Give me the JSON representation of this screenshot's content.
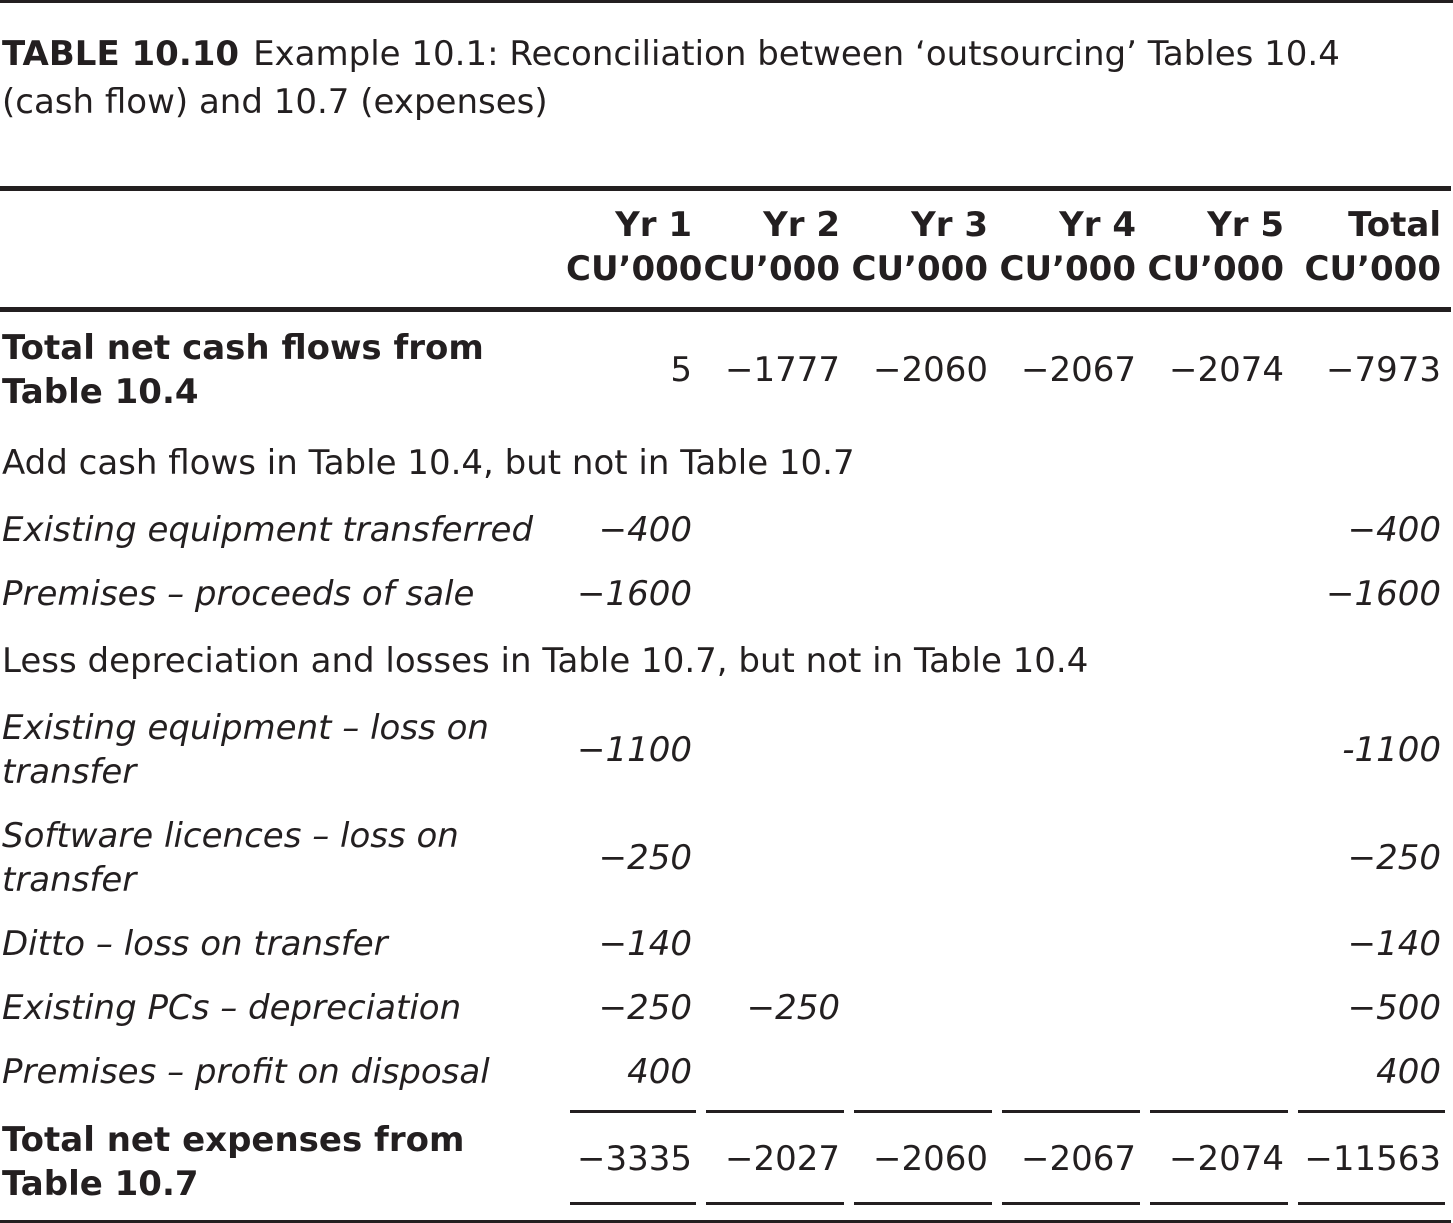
{
  "caption": {
    "label": "TABLE 10.10",
    "text": "Example 10.1: Reconciliation between ‘outsourcing’ Tables 10.4 (cash flow) and 10.7 (expenses)"
  },
  "table": {
    "headers": [
      {
        "line1": "Yr 1",
        "line2": "CU’000"
      },
      {
        "line1": "Yr 2",
        "line2": "CU’000"
      },
      {
        "line1": "Yr 3",
        "line2": "CU’000"
      },
      {
        "line1": "Yr 4",
        "line2": "CU’000"
      },
      {
        "line1": "Yr 5",
        "line2": "CU’000"
      },
      {
        "line1": "Total",
        "line2": "CU’000"
      }
    ],
    "rows": [
      {
        "label": "Total net cash flows from Table 10.4",
        "values": [
          "5",
          "−1777",
          "−2060",
          "−2067",
          "−2074",
          "−7973"
        ]
      },
      {
        "label": "Add cash flows in Table 10.4, but not in Table 10.7"
      },
      {
        "label": "Existing equipment transferred",
        "values": [
          "−400",
          "",
          "",
          "",
          "",
          "−400"
        ]
      },
      {
        "label": "Premises – proceeds of sale",
        "values": [
          "−1600",
          "",
          "",
          "",
          "",
          "−1600"
        ]
      },
      {
        "label": "Less depreciation and losses in Table 10.7, but not in Table 10.4"
      },
      {
        "label": "Existing equipment – loss on transfer",
        "values": [
          "−1100",
          "",
          "",
          "",
          "",
          "-1100"
        ]
      },
      {
        "label": "Software licences – loss on transfer",
        "values": [
          "−250",
          "",
          "",
          "",
          "",
          "−250"
        ]
      },
      {
        "label": "Ditto – loss on transfer",
        "values": [
          "−140",
          "",
          "",
          "",
          "",
          "−140"
        ]
      },
      {
        "label": "Existing PCs – depreciation",
        "values": [
          "−250",
          "−250",
          "",
          "",
          "",
          "−500"
        ]
      },
      {
        "label": "Premises – profit on disposal",
        "values": [
          "400",
          "",
          "",
          "",
          "",
          "400"
        ]
      },
      {
        "label": "Total net expenses from Table 10.7",
        "values": [
          "−3335",
          "−2027",
          "−2060",
          "−2067",
          "−2074",
          "−11563"
        ]
      }
    ]
  }
}
